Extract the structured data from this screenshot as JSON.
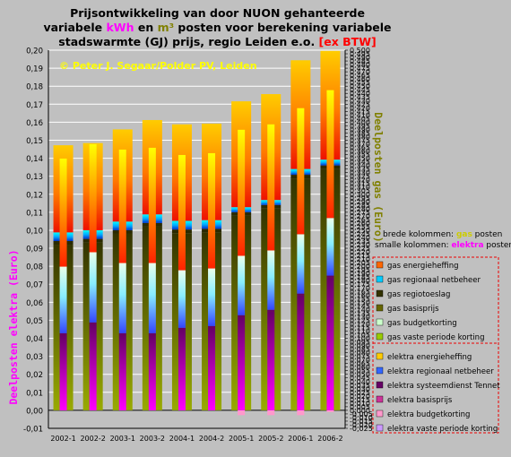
{
  "title": {
    "line1": "Prijsontwikkeling van door NUON gehanteerde",
    "line2_a": "variabele ",
    "line2_kwh": "kWh",
    "line2_b": " en ",
    "line2_m3": "m³",
    "line2_c": " posten voor berekening variabele",
    "line3_a": "stadswarmte (GJ) prijs, regio Leiden e.o. ",
    "line3_exbtw": "[ex BTW]"
  },
  "copyright": "© Peter J. Segaar/Polder PV, Leiden",
  "y_left_label": "Deelposten elektra (Euro)",
  "y_right_label": "Deelposten gas (Euro)",
  "legend_notes": {
    "wide_a": "brede kolommen: ",
    "wide_b": "gas",
    "wide_c": " posten",
    "narrow_a": "smalle kolommen: ",
    "narrow_b": "elektra",
    "narrow_c": " posten"
  },
  "legend": {
    "gas": [
      {
        "label": "gas energieheffing",
        "color": "#ff6600"
      },
      {
        "label": "gas regionaal netbeheer",
        "color": "#00ccff"
      },
      {
        "label": "gas regiotoeslag",
        "color": "#333300"
      },
      {
        "label": "gas basisprijs",
        "color": "#666600"
      },
      {
        "label": "gas budgetkorting",
        "color": "#ccffcc"
      },
      {
        "label": "gas vaste periode korting",
        "color": "#99cc00"
      }
    ],
    "elektra": [
      {
        "label": "elektra energieheffing",
        "color": "#ffcc00"
      },
      {
        "label": "elektra regionaal netbeheer",
        "color": "#3366ff"
      },
      {
        "label": "elektra systeemdienst Tennet",
        "color": "#660066"
      },
      {
        "label": "elektra basisprijs",
        "color": "#cc3399"
      },
      {
        "label": "elektra budgetkorting",
        "color": "#ff99cc"
      },
      {
        "label": "elektra vaste periode korting",
        "color": "#cc99ff"
      }
    ]
  },
  "chart_data": {
    "type": "bar",
    "categories": [
      "2002-1",
      "2002-2",
      "2003-1",
      "2003-2",
      "2004-1",
      "2004-2",
      "2005-1",
      "2005-2",
      "2006-1",
      "2006-2"
    ],
    "left_axis": {
      "min": -0.01,
      "max": 0.2,
      "step": 0.01,
      "decimals": 2
    },
    "right_axis": {
      "min": -0.025,
      "max": 0.5,
      "step": 0.005,
      "decimals": 3
    },
    "gas_stacks": [
      {
        "period": "2002-1",
        "basisprijs": 0.23,
        "regiotoeslag": 0.005,
        "netbeheer": 0.012,
        "energieheffing": 0.121
      },
      {
        "period": "2002-2",
        "basisprijs": 0.233,
        "regiotoeslag": 0.005,
        "netbeheer": 0.012,
        "energieheffing": 0.121
      },
      {
        "period": "2003-1",
        "basisprijs": 0.245,
        "regiotoeslag": 0.005,
        "netbeheer": 0.012,
        "energieheffing": 0.128
      },
      {
        "period": "2003-2",
        "basisprijs": 0.255,
        "regiotoeslag": 0.005,
        "netbeheer": 0.012,
        "energieheffing": 0.131
      },
      {
        "period": "2004-1",
        "basisprijs": 0.246,
        "regiotoeslag": 0.005,
        "netbeheer": 0.012,
        "energieheffing": 0.134
      },
      {
        "period": "2004-2",
        "basisprijs": 0.247,
        "regiotoeslag": 0.005,
        "netbeheer": 0.012,
        "energieheffing": 0.134
      },
      {
        "period": "2005-1",
        "basisprijs": 0.27,
        "regiotoeslag": 0.005,
        "netbeheer": 0.007,
        "energieheffing": 0.147
      },
      {
        "period": "2005-2",
        "basisprijs": 0.28,
        "regiotoeslag": 0.005,
        "netbeheer": 0.007,
        "energieheffing": 0.147
      },
      {
        "period": "2006-1",
        "basisprijs": 0.322,
        "regiotoeslag": 0.005,
        "netbeheer": 0.008,
        "energieheffing": 0.151
      },
      {
        "period": "2006-2",
        "basisprijs": 0.335,
        "regiotoeslag": 0.005,
        "netbeheer": 0.008,
        "energieheffing": 0.151
      }
    ],
    "elektra_stacks": [
      {
        "period": "2002-1",
        "basisprijs": 0.042,
        "tennet": 0.0008,
        "netbeheer": 0.037,
        "budgetkorting": 0,
        "energieheffing": 0.06
      },
      {
        "period": "2002-2",
        "basisprijs": 0.048,
        "tennet": 0.0008,
        "netbeheer": 0.039,
        "budgetkorting": 0,
        "energieheffing": 0.06
      },
      {
        "period": "2003-1",
        "basisprijs": 0.042,
        "tennet": 0.0008,
        "netbeheer": 0.039,
        "budgetkorting": 0,
        "energieheffing": 0.063
      },
      {
        "period": "2003-2",
        "basisprijs": 0.042,
        "tennet": 0.0008,
        "netbeheer": 0.039,
        "budgetkorting": 0,
        "energieheffing": 0.064
      },
      {
        "period": "2004-1",
        "basisprijs": 0.045,
        "tennet": 0.0008,
        "netbeheer": 0.032,
        "budgetkorting": 0,
        "energieheffing": 0.064
      },
      {
        "period": "2004-2",
        "basisprijs": 0.046,
        "tennet": 0.0008,
        "netbeheer": 0.032,
        "budgetkorting": 0,
        "energieheffing": 0.064
      },
      {
        "period": "2005-1",
        "basisprijs": 0.052,
        "tennet": 0.0008,
        "netbeheer": 0.033,
        "budgetkorting": -0.0027,
        "energieheffing": 0.07
      },
      {
        "period": "2005-2",
        "basisprijs": 0.055,
        "tennet": 0.0008,
        "netbeheer": 0.033,
        "budgetkorting": -0.0027,
        "energieheffing": 0.07
      },
      {
        "period": "2006-1",
        "basisprijs": 0.064,
        "tennet": 0.0008,
        "netbeheer": 0.033,
        "budgetkorting": -0.0027,
        "energieheffing": 0.07
      },
      {
        "period": "2006-2",
        "basisprijs": 0.074,
        "tennet": 0.0008,
        "netbeheer": 0.032,
        "budgetkorting": -0.001,
        "energieheffing": 0.071
      }
    ]
  }
}
